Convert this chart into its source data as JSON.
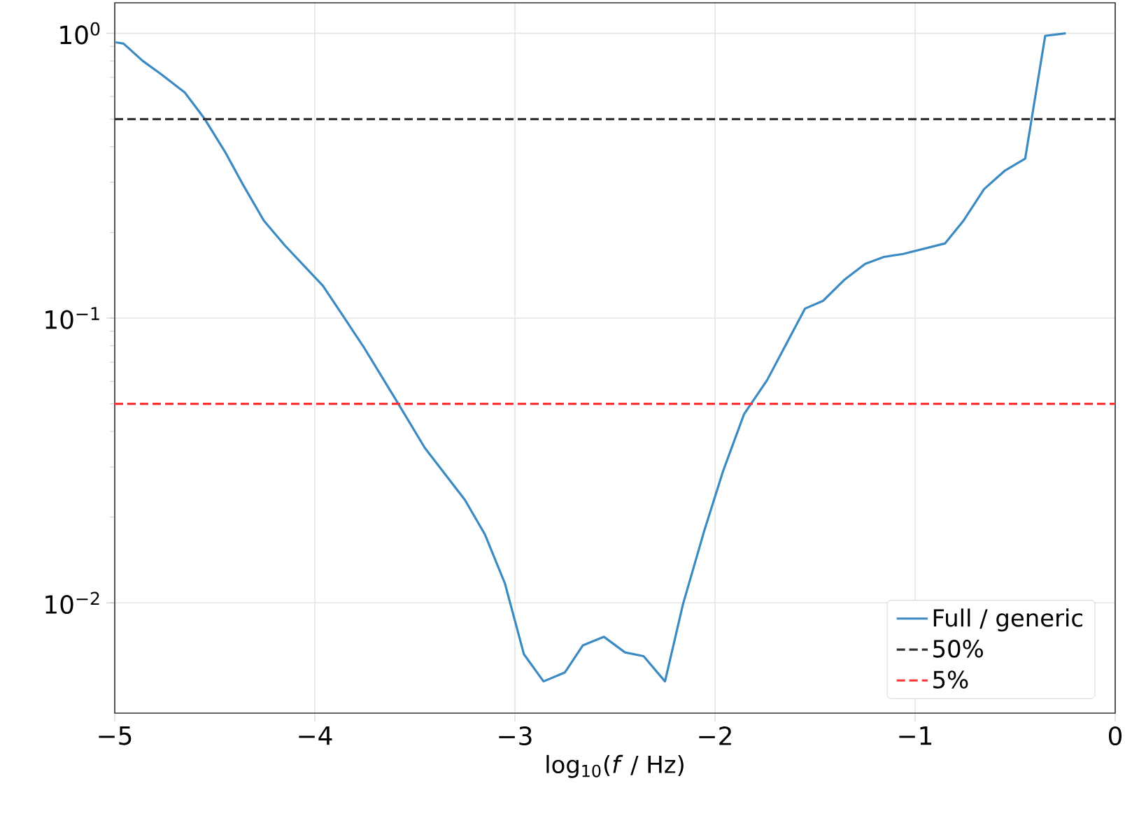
{
  "chart_data": {
    "type": "line",
    "xlabel": "log$_{10}$(*f* / Hz)",
    "x": [
      -4.995,
      -4.956,
      -4.86,
      -4.77,
      -4.65,
      -4.55,
      -4.45,
      -4.36,
      -4.255,
      -4.15,
      -3.96,
      -3.86,
      -3.755,
      -3.59,
      -3.45,
      -3.25,
      -3.15,
      -3.05,
      -2.955,
      -2.857,
      -2.75,
      -2.66,
      -2.555,
      -2.45,
      -2.357,
      -2.25,
      -2.16,
      -2.055,
      -1.96,
      -1.855,
      -1.74,
      -1.55,
      -1.46,
      -1.355,
      -1.25,
      -1.156,
      -1.06,
      -0.85,
      -0.76,
      -0.655,
      -0.55,
      -0.45,
      -0.35,
      -0.247
    ],
    "series": [
      {
        "name": "Full / generic",
        "color": "#3b8bc2",
        "values": [
          0.93,
          0.92,
          0.8,
          0.72,
          0.62,
          0.5,
          0.385,
          0.295,
          0.22,
          0.18,
          0.13,
          0.102,
          0.079,
          0.051,
          0.035,
          0.023,
          0.0174,
          0.0117,
          0.0066,
          0.0053,
          0.0057,
          0.0071,
          0.0076,
          0.0067,
          0.0065,
          0.0053,
          0.0099,
          0.0178,
          0.029,
          0.046,
          0.0605,
          0.108,
          0.115,
          0.136,
          0.155,
          0.164,
          0.168,
          0.183,
          0.219,
          0.284,
          0.33,
          0.363,
          0.98,
          1.0
        ]
      }
    ],
    "ref_lines": [
      {
        "axis": "y",
        "value": 0.5,
        "label": "50%",
        "color": "#333333",
        "line_style": "dashed"
      },
      {
        "axis": "y",
        "value": 0.05,
        "label": "5%",
        "color": "#ff3333",
        "line_style": "dashed"
      }
    ],
    "xlim": [
      -5,
      0
    ],
    "ylim": [
      0.0041,
      1.28
    ],
    "log": "y",
    "xticks": [
      {
        "value": -5,
        "label": "−5"
      },
      {
        "value": -4,
        "label": "−4"
      },
      {
        "value": -3,
        "label": "−3"
      },
      {
        "value": -2,
        "label": "−2"
      },
      {
        "value": -1,
        "label": "−1"
      },
      0
    ],
    "yticks": [
      {
        "value": 0.01,
        "label": "10$^{−2}$"
      },
      {
        "value": 0.1,
        "label": "10$^{−1}$"
      },
      {
        "value": 1,
        "label": "10$^{0}$"
      }
    ],
    "grid": true,
    "legend": "bottom right",
    "line_style": "solid",
    "marker": "none"
  }
}
